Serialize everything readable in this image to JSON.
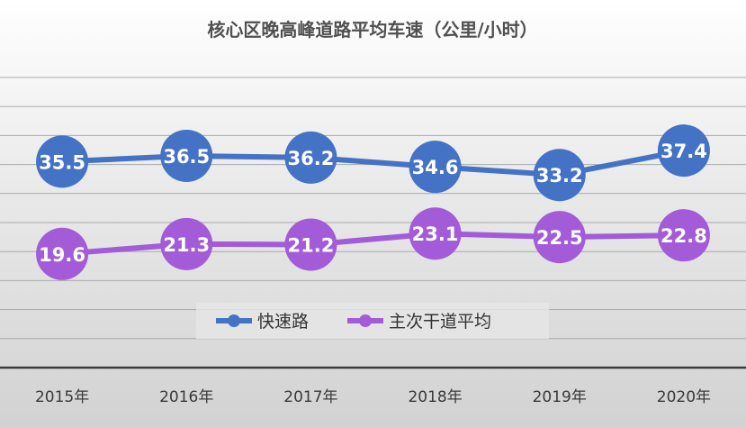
{
  "chart_data": {
    "type": "line",
    "title": "核心区晚高峰道路平均车速（公里/小时）",
    "categories": [
      "2015年",
      "2016年",
      "2017年",
      "2018年",
      "2019年",
      "2020年"
    ],
    "series": [
      {
        "name": "快速路",
        "values": [
          35.5,
          36.5,
          36.2,
          34.6,
          33.2,
          37.4
        ],
        "color": "#4472c4"
      },
      {
        "name": "主次干道平均",
        "values": [
          19.6,
          21.3,
          21.2,
          23.1,
          22.5,
          22.8
        ],
        "color": "#a35bd8"
      }
    ],
    "ylim": [
      0,
      50
    ],
    "grid": true,
    "legend": "bottom-center",
    "data_labels": true
  }
}
